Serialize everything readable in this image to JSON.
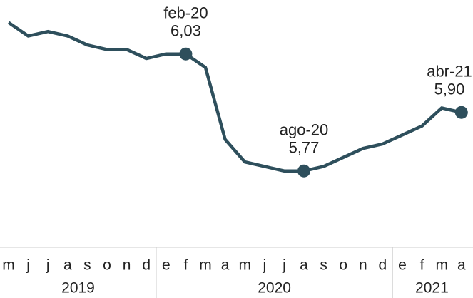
{
  "chart_data": {
    "type": "line",
    "groups": [
      {
        "label": "2019",
        "categories": [
          "m",
          "j",
          "j",
          "a",
          "s",
          "o",
          "n",
          "d"
        ]
      },
      {
        "label": "2020",
        "categories": [
          "e",
          "f",
          "m",
          "a",
          "m",
          "j",
          "j",
          "a",
          "s",
          "o",
          "n",
          "d"
        ]
      },
      {
        "label": "2021",
        "categories": [
          "e",
          "f",
          "m",
          "a"
        ]
      }
    ],
    "values": [
      6.1,
      6.07,
      6.08,
      6.07,
      6.05,
      6.04,
      6.04,
      6.02,
      6.03,
      6.03,
      6.0,
      5.84,
      5.79,
      5.78,
      5.77,
      5.77,
      5.78,
      5.8,
      5.82,
      5.83,
      5.85,
      5.87,
      5.91,
      5.9
    ],
    "point_labels": [
      null,
      null,
      null,
      null,
      null,
      null,
      null,
      null,
      null,
      "feb-20",
      null,
      null,
      null,
      null,
      null,
      "ago-20",
      null,
      null,
      null,
      null,
      null,
      null,
      null,
      "abr-21"
    ],
    "value_labels": [
      null,
      null,
      null,
      null,
      null,
      null,
      null,
      null,
      null,
      "6,03",
      null,
      null,
      null,
      null,
      null,
      "5,77",
      null,
      null,
      null,
      null,
      null,
      null,
      null,
      "5,90"
    ],
    "color": "#2e4f5c",
    "ylim": [
      5.6,
      6.15
    ]
  }
}
